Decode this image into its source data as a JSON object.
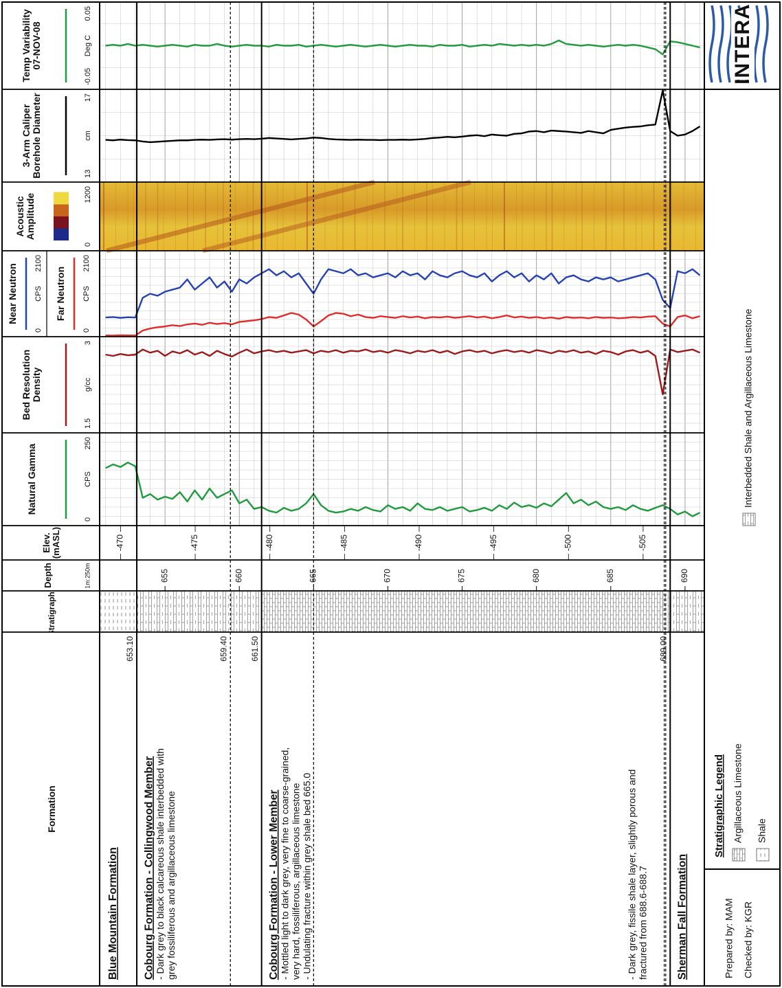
{
  "header": {
    "prepared": "Prepared by: MAM",
    "checked": "Checked by: KGR",
    "logo": "INTERA"
  },
  "columns": {
    "formation": "Formation",
    "stratigraphy": "Stratigraphy",
    "depth": "Depth",
    "scale": "1m:250m",
    "elev": "Elev. (mASL)"
  },
  "legend": {
    "title": "Stratigraphic Legend",
    "items": [
      "Argillaceous Limestone",
      "Shale",
      "Interbedded Shale and Argillaceous Limestone"
    ]
  },
  "formations": [
    {
      "name": "Blue Mountain Formation"
    },
    {
      "name": "Cobourg Formation - Collingwood Member",
      "description": [
        "- Dark grey to black calcareous shale interbedded with",
        "grey fossiliferous and argillaceous limestone"
      ]
    },
    {
      "name": "Cobourg Formation - Lower Member",
      "description": [
        "- Mottled light to dark grey, very fine to coarse-grained,",
        "very hard, fossiliferous, argillaceous limestone",
        "- Undulating fracture within grey shale bed 665.0"
      ],
      "note": [
        "- Dark grey, fissile shale layer, slightly porous and",
        "fractured from 688.6-688.7"
      ]
    },
    {
      "name": "Sherman Fall Formation"
    }
  ],
  "boundaries": [
    {
      "depth": 653.1,
      "style": "solid",
      "label": "653.10"
    },
    {
      "depth": 659.4,
      "style": "dashed",
      "label": "659.40"
    },
    {
      "depth": 661.5,
      "style": "solid",
      "label": "661.50"
    },
    {
      "depth": 665,
      "style": "dashed"
    },
    {
      "depth": 688.6,
      "style": "dashed"
    },
    {
      "depth": 688.7,
      "style": "dashed"
    },
    {
      "depth": 689,
      "style": "solid",
      "label": "689.00"
    }
  ],
  "chart_data": {
    "type": "line",
    "ylim": [
      650.6,
      691.3
    ],
    "yticks": [
      655,
      660,
      665,
      670,
      675,
      680,
      685,
      690
    ],
    "yminor": [
      651,
      652,
      653,
      654,
      655,
      656,
      657,
      658,
      659,
      660,
      661,
      662,
      663,
      664,
      665,
      666,
      667,
      668,
      669,
      670,
      671,
      672,
      673,
      674,
      675,
      676,
      677,
      678,
      679,
      680,
      681,
      682,
      683,
      684,
      685,
      686,
      687,
      688,
      689,
      690,
      691
    ],
    "elev_lim": [
      -468.6,
      -509.1
    ],
    "elev_ticks": [
      -470,
      -475,
      -480,
      -485,
      -490,
      -495,
      -500,
      -505
    ],
    "depth": [
      651,
      651.5,
      652,
      652.5,
      653,
      653.5,
      654,
      654.5,
      655,
      655.5,
      656,
      656.5,
      657,
      657.5,
      658,
      658.5,
      659,
      659.5,
      660,
      660.5,
      661,
      661.5,
      662,
      662.5,
      663,
      663.5,
      664,
      664.5,
      665,
      665.5,
      666,
      666.5,
      667,
      667.5,
      668,
      668.5,
      669,
      669.5,
      670,
      670.5,
      671,
      671.5,
      672,
      672.5,
      673,
      673.5,
      674,
      674.5,
      675,
      675.5,
      676,
      676.5,
      677,
      677.5,
      678,
      678.5,
      679,
      679.5,
      680,
      680.5,
      681,
      681.5,
      682,
      682.5,
      683,
      683.5,
      684,
      684.5,
      685,
      685.5,
      686,
      686.5,
      687,
      687.5,
      688,
      688.5,
      689,
      689.5,
      690,
      690.5,
      691
    ],
    "tracks": [
      {
        "xgrid": [
          25,
          50,
          75,
          100,
          125,
          150,
          175,
          200,
          225
        ],
        "series": [
          {
            "name": "Natural Gamma",
            "color": "#1f9a3c",
            "unit": "CPS",
            "xlim": [
              0,
              250
            ],
            "xticks": [
              0,
              250
            ],
            "values": [
              155,
              165,
              158,
              170,
              160,
              75,
              85,
              70,
              78,
              72,
              90,
              65,
              95,
              70,
              100,
              75,
              85,
              95,
              60,
              70,
              45,
              50,
              40,
              35,
              48,
              40,
              45,
              60,
              85,
              55,
              40,
              35,
              38,
              45,
              40,
              50,
              42,
              38,
              55,
              45,
              50,
              40,
              60,
              45,
              42,
              50,
              40,
              45,
              50,
              38,
              42,
              48,
              40,
              55,
              45,
              62,
              50,
              55,
              48,
              60,
              52,
              70,
              88,
              60,
              70,
              55,
              65,
              50,
              45,
              50,
              42,
              55,
              45,
              40,
              48,
              55,
              45,
              30,
              38,
              25,
              35
            ]
          }
        ]
      },
      {
        "xgrid": [
          1.65,
          1.8,
          1.95,
          2.1,
          2.25,
          2.4,
          2.55,
          2.7,
          2.85
        ],
        "series": [
          {
            "name": "Bed Resolution Density",
            "color": "#9e1a1a",
            "unit": "g/cc",
            "xlim": [
              1.5,
              3
            ],
            "xticks": [
              1.5,
              3
            ],
            "values": [
              2.72,
              2.7,
              2.73,
              2.71,
              2.72,
              2.8,
              2.75,
              2.78,
              2.7,
              2.77,
              2.74,
              2.79,
              2.72,
              2.76,
              2.7,
              2.78,
              2.73,
              2.69,
              2.75,
              2.8,
              2.74,
              2.77,
              2.79,
              2.76,
              2.78,
              2.75,
              2.77,
              2.79,
              2.74,
              2.78,
              2.76,
              2.79,
              2.75,
              2.78,
              2.77,
              2.8,
              2.76,
              2.78,
              2.75,
              2.79,
              2.77,
              2.74,
              2.78,
              2.76,
              2.79,
              2.75,
              2.78,
              2.73,
              2.77,
              2.79,
              2.76,
              2.78,
              2.74,
              2.77,
              2.79,
              2.76,
              2.78,
              2.75,
              2.79,
              2.77,
              2.74,
              2.78,
              2.76,
              2.79,
              2.75,
              2.77,
              2.73,
              2.78,
              2.76,
              2.72,
              2.77,
              2.79,
              2.75,
              2.78,
              2.7,
              2.1,
              2.8,
              2.76,
              2.78,
              2.8,
              2.75
            ]
          }
        ]
      },
      {
        "xgrid": [
          210,
          420,
          630,
          840,
          1050,
          1260,
          1470,
          1680,
          1890
        ],
        "series": [
          {
            "name": "Near Neutron",
            "color": "#2442b4",
            "unit": "CPS",
            "xlim": [
              0,
              2100
            ],
            "xticks": [
              0,
              2100
            ],
            "values": [
              470,
              480,
              460,
              475,
              470,
              950,
              1050,
              1000,
              1100,
              1150,
              1200,
              1400,
              1150,
              1300,
              1450,
              1200,
              1350,
              1100,
              1400,
              1300,
              1450,
              1550,
              1650,
              1500,
              1600,
              1450,
              1550,
              1300,
              1050,
              1400,
              1650,
              1600,
              1550,
              1650,
              1500,
              1550,
              1450,
              1500,
              1550,
              1450,
              1600,
              1500,
              1550,
              1400,
              1600,
              1500,
              1450,
              1550,
              1600,
              1500,
              1450,
              1550,
              1350,
              1500,
              1600,
              1450,
              1550,
              1350,
              1500,
              1400,
              1550,
              1300,
              1450,
              1500,
              1400,
              1350,
              1450,
              1400,
              1450,
              1350,
              1400,
              1450,
              1500,
              1550,
              1400,
              900,
              700,
              1600,
              1550,
              1650,
              1500
            ]
          },
          {
            "name": "Far Neutron",
            "color": "#e42b2b",
            "unit": "CPS",
            "xlim": [
              0,
              2100
            ],
            "xticks": [
              0,
              2100
            ],
            "values": [
              30,
              25,
              35,
              30,
              28,
              150,
              200,
              230,
              250,
              280,
              260,
              300,
              320,
              290,
              340,
              310,
              330,
              300,
              360,
              380,
              400,
              430,
              480,
              460,
              520,
              580,
              540,
              420,
              250,
              380,
              520,
              580,
              560,
              500,
              540,
              480,
              460,
              500,
              480,
              460,
              500,
              470,
              490,
              450,
              480,
              470,
              490,
              460,
              480,
              500,
              470,
              490,
              450,
              480,
              520,
              470,
              490,
              460,
              480,
              450,
              470,
              440,
              480,
              460,
              470,
              450,
              480,
              460,
              470,
              450,
              460,
              480,
              470,
              490,
              500,
              320,
              250,
              480,
              520,
              450,
              500
            ]
          }
        ]
      },
      {
        "type": "image",
        "name": "Acoustic Amplitude",
        "xlim": [
          0,
          1200
        ],
        "xticks": [
          0,
          1200
        ],
        "colormap": [
          "#1c2a8a",
          "#7a1220",
          "#c8641c",
          "#f0d840"
        ]
      },
      {
        "xgrid": [
          14,
          15,
          16
        ],
        "series": [
          {
            "name": "3-Arm Caliper Borehole Diameter",
            "color": "#000000",
            "unit": "cm",
            "xlim": [
              13,
              17
            ],
            "xticks": [
              13,
              17
            ],
            "values": [
              14.82,
              14.8,
              14.83,
              14.81,
              14.8,
              14.75,
              14.72,
              14.74,
              14.76,
              14.78,
              14.8,
              14.8,
              14.82,
              14.83,
              14.82,
              14.84,
              14.85,
              14.83,
              14.85,
              14.86,
              14.85,
              14.87,
              14.9,
              14.88,
              14.86,
              14.84,
              14.86,
              14.88,
              14.92,
              14.9,
              14.86,
              14.84,
              14.83,
              14.82,
              14.83,
              14.82,
              14.82,
              14.81,
              14.82,
              14.82,
              14.83,
              14.82,
              14.84,
              14.86,
              14.9,
              14.92,
              14.95,
              14.93,
              14.96,
              15.0,
              15.02,
              14.98,
              15.05,
              15.02,
              15.0,
              15.08,
              15.1,
              15.18,
              15.2,
              15.15,
              15.22,
              15.2,
              15.18,
              15.15,
              15.12,
              15.2,
              15.15,
              15.1,
              15.25,
              15.3,
              15.35,
              15.38,
              15.4,
              15.45,
              15.48,
              16.95,
              15.2,
              15.0,
              15.05,
              15.2,
              15.4
            ]
          }
        ]
      },
      {
        "xgrid": [
          -0.025,
          0,
          0.025
        ],
        "series": [
          {
            "name": "Temp Variability 07-NOV-08",
            "color": "#1f9a3c",
            "unit": "Deg C",
            "xlim": [
              -0.05,
              0.05
            ],
            "xticks": [
              -0.05,
              0.05
            ],
            "values": [
              0,
              0.001,
              0,
              0.002,
              0,
              0.001,
              0,
              -0.001,
              0,
              0.001,
              0,
              -0.001,
              0.001,
              0,
              0,
              0.002,
              0,
              -0.001,
              0,
              0.001,
              0,
              0,
              -0.001,
              0.001,
              0,
              0,
              0.001,
              -0.001,
              0,
              0.001,
              0,
              -0.001,
              0,
              0.001,
              0,
              -0.001,
              0,
              0.001,
              0,
              -0.001,
              0,
              0.001,
              0,
              0,
              -0.001,
              0.001,
              0,
              0,
              0.001,
              -0.001,
              0,
              0.001,
              0,
              0.002,
              0.001,
              0,
              0.001,
              0,
              0.001,
              0,
              0.002,
              0.006,
              0.002,
              0.001,
              0,
              0.001,
              0,
              -0.001,
              0,
              0.001,
              0,
              0.001,
              0,
              -0.002,
              -0.004,
              -0.01,
              0.005,
              0.004,
              0.002,
              0,
              -0.002
            ]
          }
        ]
      }
    ]
  }
}
